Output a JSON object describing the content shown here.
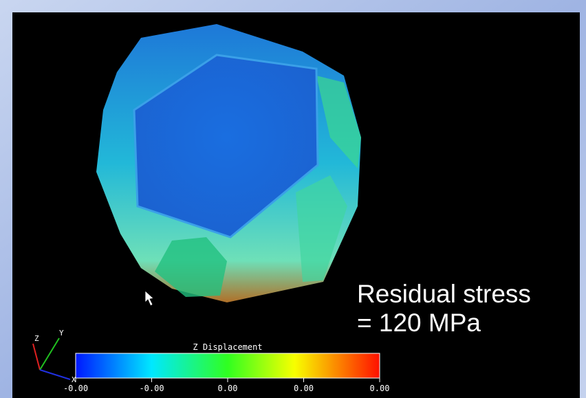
{
  "visualization": {
    "colorbar": {
      "title": "Z Displacement",
      "ticks": [
        "-0.00",
        "-0.00",
        "0.00",
        "0.00",
        "0.00"
      ]
    },
    "axes": {
      "z": "Z",
      "y": "Y",
      "x": "X"
    }
  },
  "annotation": {
    "line1": "Residual stress",
    "line2": "= 120 MPa"
  }
}
